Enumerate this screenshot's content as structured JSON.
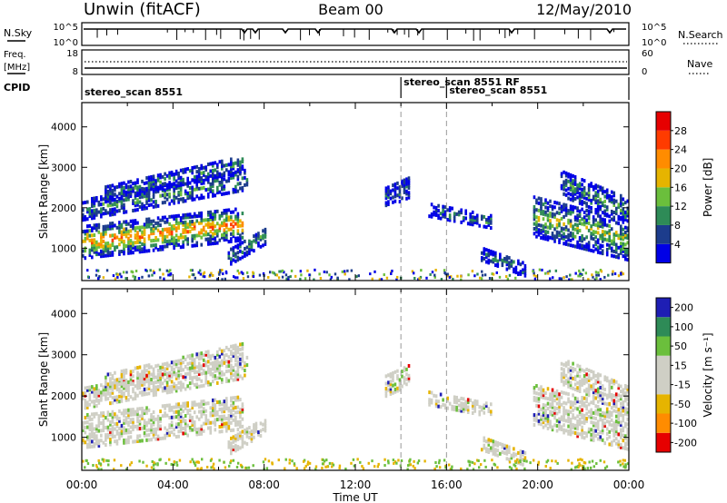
{
  "header": {
    "station": "Unwin (fitACF)",
    "beam": "Beam 00",
    "date": "12/May/2010"
  },
  "strips": {
    "nsky_label": "N.Sky",
    "nsky_ticks": [
      "10^5",
      "10^0"
    ],
    "nsearch_label": "N.Search",
    "nsearch_ticks": [
      "10^5",
      "10^0"
    ],
    "freq_label": "Freq.",
    "freq_unit": "[MHz]",
    "freq_ticks": [
      "18",
      "8"
    ],
    "nave_label": "Nave",
    "nave_ticks": [
      "60",
      "0"
    ],
    "cpid_label": "CPID"
  },
  "cpid": [
    {
      "name": "stereo_scan 8551",
      "start": 0,
      "row": 0
    },
    {
      "name": "stereo_scan 8551 RF",
      "start": 14,
      "row": 0
    },
    {
      "name": "stereo_scan 8551",
      "start": 16,
      "row": 1
    }
  ],
  "chart_data": [
    {
      "type": "heatmap",
      "name": "power",
      "ylabel": "Slant Range [km]",
      "xlabel": "Time UT",
      "x_ticks": [
        "00:00",
        "04:00",
        "08:00",
        "12:00",
        "16:00",
        "20:00",
        "00:00"
      ],
      "y_ticks": [
        1000,
        2000,
        3000,
        4000
      ],
      "ylim": [
        200,
        4600
      ],
      "xlim_hours": [
        0,
        24
      ],
      "colorbar_label": "Power [dB]",
      "colorbar_ticks": [
        4,
        8,
        12,
        16,
        20,
        24,
        28
      ],
      "colorbar_range": [
        0,
        32
      ],
      "colors": [
        "#0000e6",
        "#1c3c8c",
        "#2e8b57",
        "#6bbf3c",
        "#e6b400",
        "#ff8c00",
        "#ff3b00",
        "#e60000"
      ],
      "regions": [
        {
          "t0": 0.0,
          "t1": 7.0,
          "r_center": 1150,
          "r_end": 1600,
          "thick": 400,
          "level": 0.72
        },
        {
          "t0": 0.0,
          "t1": 7.2,
          "r_center": 1950,
          "r_end": 2700,
          "thick": 250,
          "level": 0.3
        },
        {
          "t0": 1.0,
          "t1": 7.0,
          "r_center": 2350,
          "r_end": 3100,
          "thick": 200,
          "level": 0.25
        },
        {
          "t0": 6.4,
          "t1": 8.0,
          "r_center": 780,
          "r_end": 1300,
          "thick": 200,
          "level": 0.28
        },
        {
          "t0": 13.3,
          "t1": 14.3,
          "r_center": 2250,
          "r_end": 2500,
          "thick": 250,
          "level": 0.2
        },
        {
          "t0": 15.2,
          "t1": 18.0,
          "r_center": 1950,
          "r_end": 1650,
          "thick": 160,
          "level": 0.3
        },
        {
          "t0": 17.5,
          "t1": 19.5,
          "r_center": 850,
          "r_end": 450,
          "thick": 150,
          "level": 0.22
        },
        {
          "t0": 19.8,
          "t1": 24.0,
          "r_center": 1800,
          "r_end": 1200,
          "thick": 500,
          "level": 0.45
        },
        {
          "t0": 21.0,
          "t1": 24.0,
          "r_center": 2600,
          "r_end": 1900,
          "thick": 300,
          "level": 0.3
        }
      ]
    },
    {
      "type": "heatmap",
      "name": "velocity",
      "ylabel": "Slant Range [km]",
      "xlabel": "Time UT",
      "x_ticks": [
        "00:00",
        "04:00",
        "08:00",
        "12:00",
        "16:00",
        "20:00",
        "00:00"
      ],
      "y_ticks": [
        1000,
        2000,
        3000,
        4000
      ],
      "ylim": [
        200,
        4600
      ],
      "colorbar_label": "Velocity [m s⁻¹]",
      "colorbar_ticks": [
        "200",
        "100",
        "50",
        "15",
        "-15",
        "-50",
        "-100",
        "-200"
      ],
      "colors": [
        "#1e1eb4",
        "#2e8b57",
        "#6bbf3c",
        "#cfcfc5",
        "#cfcfc5",
        "#e6b400",
        "#ff8c00",
        "#e60000"
      ],
      "gray": "#cfcfc5"
    }
  ],
  "time_axis_label": "Time UT"
}
